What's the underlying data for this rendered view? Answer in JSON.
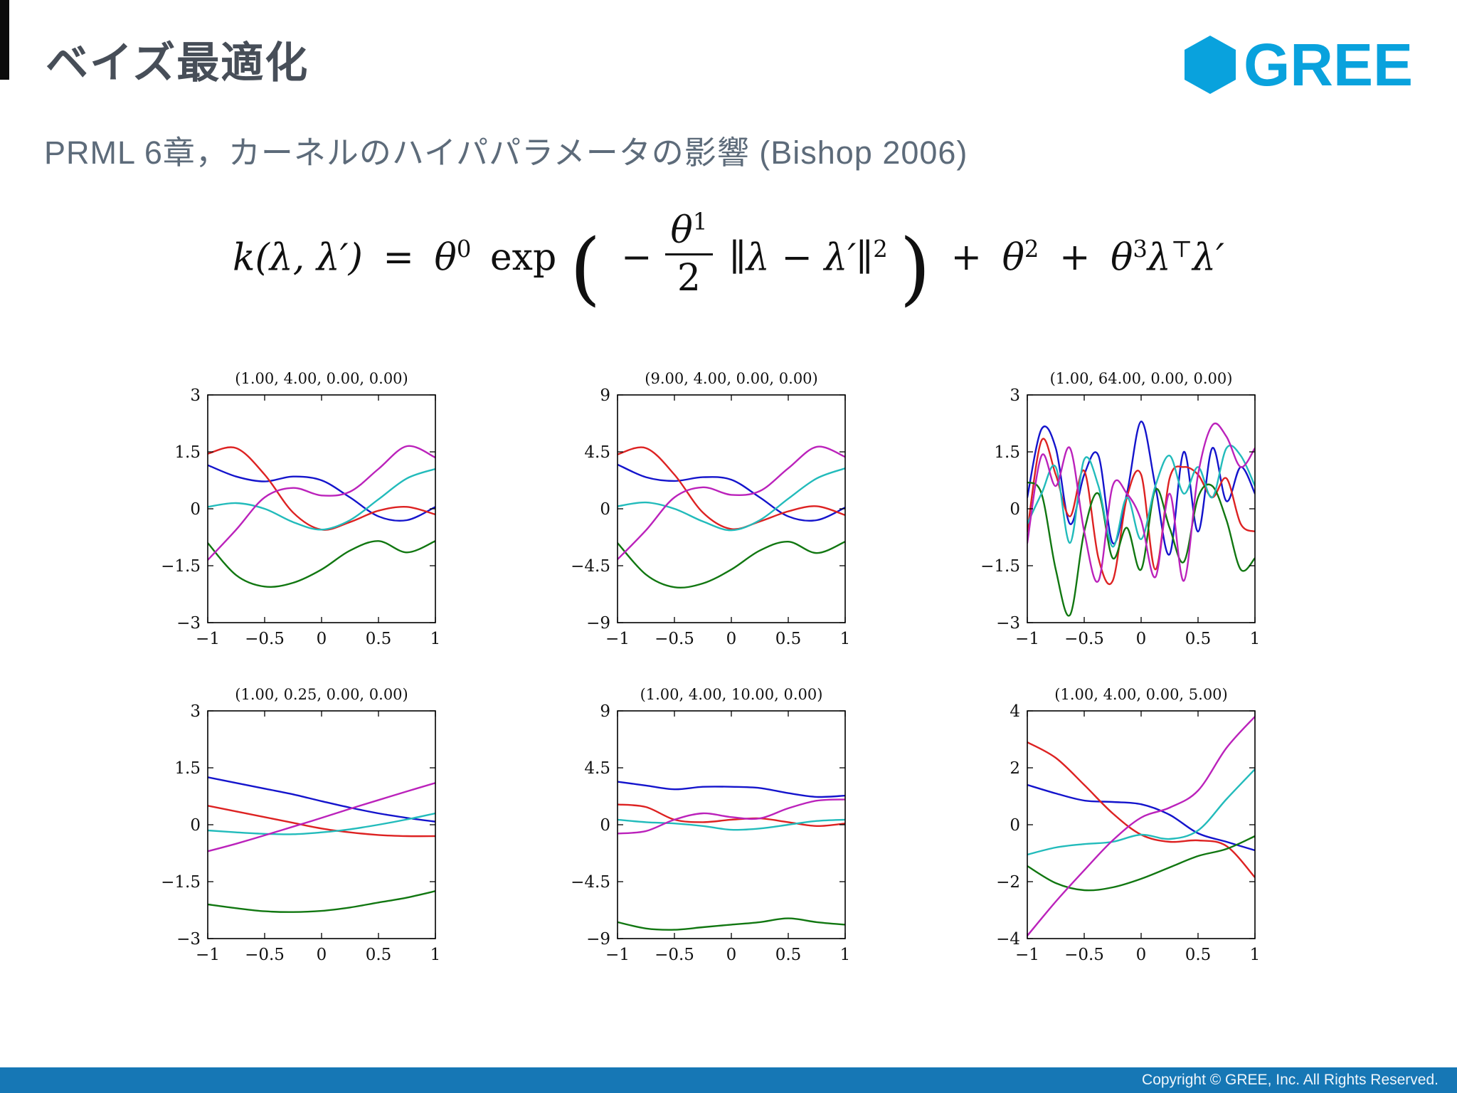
{
  "slide": {
    "title": "ベイズ最適化",
    "subtitle": "PRML 6章，カーネルのハイパパラメータの影響 (Bishop 2006)",
    "logo_text": "GREE",
    "footer": "Copyright © GREE, Inc. All Rights Reserved."
  },
  "colors": {
    "brand_blue": "#09a2dd",
    "footer_bar": "#1677b5",
    "title_gray": "#474e58",
    "subtitle_gray": "#5d6b7a",
    "series": {
      "blue": "#1414cc",
      "red": "#dd2222",
      "green": "#117711",
      "cyan": "#22bbbb",
      "magenta": "#bb22bb"
    }
  },
  "formula": {
    "lhs": "k(λ, λ′)",
    "equals": "=",
    "theta": "θ",
    "exp0": "0",
    "exp_word": "exp",
    "minus": "−",
    "num_theta": "θ",
    "num_exp": "1",
    "den": "2",
    "norm": "∥λ − λ′∥",
    "norm_exp": "2",
    "plus1": "+",
    "exp2": "2",
    "plus2": "+",
    "exp3": "3",
    "lambda": "λ",
    "transpose": "⊤",
    "lambda_prime": "λ′",
    "open_paren": "(",
    "close_paren": ")"
  },
  "chart_data": [
    {
      "type": "line",
      "title": "(1.00, 4.00, 0.00, 0.00)",
      "xlim": [
        -1,
        1
      ],
      "ylim": [
        -3,
        3
      ],
      "xticks": [
        -1,
        -0.5,
        0,
        0.5,
        1
      ],
      "xtick_labels": [
        "−1",
        "−0.5",
        "0",
        "0.5",
        "1"
      ],
      "yticks": [
        3,
        1.5,
        0,
        -1.5,
        -3
      ],
      "ytick_labels": [
        "3",
        "1.5",
        "0",
        "−1.5",
        "−3"
      ],
      "x": [
        -1,
        -0.75,
        -0.5,
        -0.25,
        0,
        0.25,
        0.5,
        0.75,
        1
      ],
      "series": [
        {
          "name": "sample-blue",
          "color": "blue",
          "values": [
            1.15,
            0.85,
            0.72,
            0.85,
            0.75,
            0.3,
            -0.2,
            -0.3,
            0.05
          ]
        },
        {
          "name": "sample-red",
          "color": "red",
          "values": [
            1.45,
            1.6,
            0.9,
            -0.1,
            -0.55,
            -0.35,
            -0.05,
            0.05,
            -0.15
          ]
        },
        {
          "name": "sample-green",
          "color": "green",
          "values": [
            -0.9,
            -1.75,
            -2.05,
            -1.95,
            -1.6,
            -1.1,
            -0.85,
            -1.15,
            -0.85
          ]
        },
        {
          "name": "sample-cyan",
          "color": "cyan",
          "values": [
            0.05,
            0.15,
            0.0,
            -0.35,
            -0.55,
            -0.3,
            0.25,
            0.8,
            1.05
          ]
        },
        {
          "name": "sample-magenta",
          "color": "magenta",
          "values": [
            -1.35,
            -0.55,
            0.3,
            0.55,
            0.35,
            0.45,
            1.05,
            1.65,
            1.35
          ]
        }
      ]
    },
    {
      "type": "line",
      "title": "(9.00, 4.00, 0.00, 0.00)",
      "xlim": [
        -1,
        1
      ],
      "ylim": [
        -9,
        9
      ],
      "xticks": [
        -1,
        -0.5,
        0,
        0.5,
        1
      ],
      "xtick_labels": [
        "−1",
        "−0.5",
        "0",
        "0.5",
        "1"
      ],
      "yticks": [
        9,
        4.5,
        0,
        -4.5,
        -9
      ],
      "ytick_labels": [
        "9",
        "4.5",
        "0",
        "−4.5",
        "−9"
      ],
      "x": [
        -1,
        -0.75,
        -0.5,
        -0.25,
        0,
        0.25,
        0.5,
        0.75,
        1
      ],
      "series": [
        {
          "name": "sample-blue",
          "color": "blue",
          "values": [
            3.5,
            2.5,
            2.2,
            2.5,
            2.3,
            0.9,
            -0.6,
            -0.9,
            0.1
          ]
        },
        {
          "name": "sample-red",
          "color": "red",
          "values": [
            4.3,
            4.8,
            2.7,
            -0.3,
            -1.6,
            -1.0,
            -0.2,
            0.2,
            -0.5
          ]
        },
        {
          "name": "sample-green",
          "color": "green",
          "values": [
            -2.7,
            -5.2,
            -6.2,
            -5.9,
            -4.8,
            -3.3,
            -2.6,
            -3.5,
            -2.6
          ]
        },
        {
          "name": "sample-cyan",
          "color": "cyan",
          "values": [
            0.2,
            0.5,
            0.0,
            -1.0,
            -1.7,
            -0.9,
            0.8,
            2.4,
            3.2
          ]
        },
        {
          "name": "sample-magenta",
          "color": "magenta",
          "values": [
            -4.0,
            -1.7,
            0.9,
            1.7,
            1.1,
            1.4,
            3.2,
            4.9,
            4.1
          ]
        }
      ]
    },
    {
      "type": "line",
      "title": "(1.00, 64.00, 0.00, 0.00)",
      "xlim": [
        -1,
        1
      ],
      "ylim": [
        -3,
        3
      ],
      "xticks": [
        -1,
        -0.5,
        0,
        0.5,
        1
      ],
      "xtick_labels": [
        "−1",
        "−0.5",
        "0",
        "0.5",
        "1"
      ],
      "yticks": [
        3,
        1.5,
        0,
        -1.5,
        -3
      ],
      "ytick_labels": [
        "3",
        "1.5",
        "0",
        "−1.5",
        "−3"
      ],
      "x": [
        -1,
        -0.875,
        -0.75,
        -0.625,
        -0.5,
        -0.375,
        -0.25,
        -0.125,
        0,
        0.125,
        0.25,
        0.375,
        0.5,
        0.625,
        0.75,
        0.875,
        1
      ],
      "series": [
        {
          "name": "sample-blue",
          "color": "blue",
          "values": [
            0.3,
            2.1,
            1.6,
            -0.4,
            0.9,
            1.4,
            -0.9,
            0.4,
            2.3,
            0.6,
            -1.2,
            1.5,
            -0.6,
            1.6,
            0.2,
            1.1,
            0.4
          ]
        },
        {
          "name": "sample-red",
          "color": "red",
          "values": [
            -0.6,
            1.8,
            0.9,
            -0.2,
            1.0,
            -1.3,
            -1.9,
            0.3,
            0.9,
            -1.6,
            0.8,
            1.1,
            0.9,
            0.3,
            0.8,
            -0.4,
            -0.6
          ]
        },
        {
          "name": "sample-green",
          "color": "green",
          "values": [
            0.7,
            0.4,
            -1.6,
            -2.8,
            -0.6,
            0.4,
            -1.3,
            -0.5,
            -1.6,
            0.5,
            -0.5,
            -1.4,
            0.3,
            0.6,
            -0.3,
            -1.6,
            -1.3
          ]
        },
        {
          "name": "sample-cyan",
          "color": "cyan",
          "values": [
            -0.4,
            0.4,
            1.1,
            -0.9,
            1.3,
            0.6,
            -1.0,
            0.3,
            -0.8,
            0.6,
            1.4,
            0.4,
            1.1,
            0.3,
            1.6,
            1.4,
            0.6
          ]
        },
        {
          "name": "sample-magenta",
          "color": "magenta",
          "values": [
            -0.9,
            1.4,
            0.6,
            1.6,
            -0.6,
            -1.9,
            0.6,
            0.4,
            -0.3,
            -1.8,
            0.4,
            -1.9,
            0.9,
            2.2,
            1.9,
            1.1,
            1.6
          ]
        }
      ]
    },
    {
      "type": "line",
      "title": "(1.00, 0.25, 0.00, 0.00)",
      "xlim": [
        -1,
        1
      ],
      "ylim": [
        -3,
        3
      ],
      "xticks": [
        -1,
        -0.5,
        0,
        0.5,
        1
      ],
      "xtick_labels": [
        "−1",
        "−0.5",
        "0",
        "0.5",
        "1"
      ],
      "yticks": [
        3,
        1.5,
        0,
        -1.5,
        -3
      ],
      "ytick_labels": [
        "3",
        "1.5",
        "0",
        "−1.5",
        "−3"
      ],
      "x": [
        -1,
        -0.75,
        -0.5,
        -0.25,
        0,
        0.25,
        0.5,
        0.75,
        1
      ],
      "series": [
        {
          "name": "sample-blue",
          "color": "blue",
          "values": [
            1.25,
            1.1,
            0.95,
            0.8,
            0.62,
            0.45,
            0.3,
            0.18,
            0.08
          ]
        },
        {
          "name": "sample-red",
          "color": "red",
          "values": [
            0.5,
            0.35,
            0.2,
            0.05,
            -0.1,
            -0.2,
            -0.27,
            -0.3,
            -0.3
          ]
        },
        {
          "name": "sample-green",
          "color": "green",
          "values": [
            -2.1,
            -2.2,
            -2.28,
            -2.3,
            -2.27,
            -2.18,
            -2.05,
            -1.92,
            -1.75
          ]
        },
        {
          "name": "sample-cyan",
          "color": "cyan",
          "values": [
            -0.15,
            -0.2,
            -0.24,
            -0.25,
            -0.2,
            -0.12,
            0.0,
            0.14,
            0.3
          ]
        },
        {
          "name": "sample-magenta",
          "color": "magenta",
          "values": [
            -0.7,
            -0.5,
            -0.28,
            -0.05,
            0.18,
            0.42,
            0.65,
            0.88,
            1.1
          ]
        }
      ]
    },
    {
      "type": "line",
      "title": "(1.00, 4.00, 10.00, 0.00)",
      "xlim": [
        -1,
        1
      ],
      "ylim": [
        -9,
        9
      ],
      "xticks": [
        -1,
        -0.5,
        0,
        0.5,
        1
      ],
      "xtick_labels": [
        "−1",
        "−0.5",
        "0",
        "0.5",
        "1"
      ],
      "yticks": [
        9,
        4.5,
        0,
        -4.5,
        -9
      ],
      "ytick_labels": [
        "9",
        "4.5",
        "0",
        "−4.5",
        "−9"
      ],
      "x": [
        -1,
        -0.75,
        -0.5,
        -0.25,
        0,
        0.25,
        0.5,
        0.75,
        1
      ],
      "series": [
        {
          "name": "sample-blue",
          "color": "blue",
          "values": [
            3.4,
            3.1,
            2.8,
            3.0,
            3.0,
            2.9,
            2.5,
            2.2,
            2.3
          ]
        },
        {
          "name": "sample-red",
          "color": "red",
          "values": [
            1.6,
            1.4,
            0.4,
            0.2,
            0.4,
            0.5,
            0.2,
            -0.1,
            0.1
          ]
        },
        {
          "name": "sample-green",
          "color": "green",
          "values": [
            -7.7,
            -8.2,
            -8.3,
            -8.1,
            -7.9,
            -7.7,
            -7.4,
            -7.7,
            -7.9
          ]
        },
        {
          "name": "sample-cyan",
          "color": "cyan",
          "values": [
            0.4,
            0.2,
            0.1,
            -0.1,
            -0.4,
            -0.3,
            0.0,
            0.3,
            0.4
          ]
        },
        {
          "name": "sample-magenta",
          "color": "magenta",
          "values": [
            -0.7,
            -0.5,
            0.4,
            0.9,
            0.6,
            0.5,
            1.3,
            1.9,
            2.0
          ]
        }
      ]
    },
    {
      "type": "line",
      "title": "(1.00, 4.00, 0.00, 5.00)",
      "xlim": [
        -1,
        1
      ],
      "ylim": [
        -4,
        4
      ],
      "xticks": [
        -1,
        -0.5,
        0,
        0.5,
        1
      ],
      "xtick_labels": [
        "−1",
        "−0.5",
        "0",
        "0.5",
        "1"
      ],
      "yticks": [
        4,
        2,
        0,
        -2,
        -4
      ],
      "ytick_labels": [
        "4",
        "2",
        "0",
        "−2",
        "−4"
      ],
      "x": [
        -1,
        -0.75,
        -0.5,
        -0.25,
        0,
        0.25,
        0.5,
        0.75,
        1
      ],
      "series": [
        {
          "name": "sample-blue",
          "color": "blue",
          "values": [
            1.4,
            1.1,
            0.85,
            0.8,
            0.72,
            0.35,
            -0.3,
            -0.6,
            -0.9
          ]
        },
        {
          "name": "sample-red",
          "color": "red",
          "values": [
            2.9,
            2.35,
            1.4,
            0.4,
            -0.35,
            -0.6,
            -0.55,
            -0.75,
            -1.85
          ]
        },
        {
          "name": "sample-green",
          "color": "green",
          "values": [
            -1.45,
            -2.05,
            -2.3,
            -2.2,
            -1.9,
            -1.5,
            -1.1,
            -0.85,
            -0.4
          ]
        },
        {
          "name": "sample-cyan",
          "color": "cyan",
          "values": [
            -1.05,
            -0.8,
            -0.68,
            -0.6,
            -0.35,
            -0.5,
            -0.2,
            0.9,
            1.95
          ]
        },
        {
          "name": "sample-magenta",
          "color": "magenta",
          "values": [
            -3.9,
            -2.7,
            -1.6,
            -0.55,
            0.25,
            0.6,
            1.2,
            2.7,
            3.8
          ]
        }
      ]
    }
  ]
}
